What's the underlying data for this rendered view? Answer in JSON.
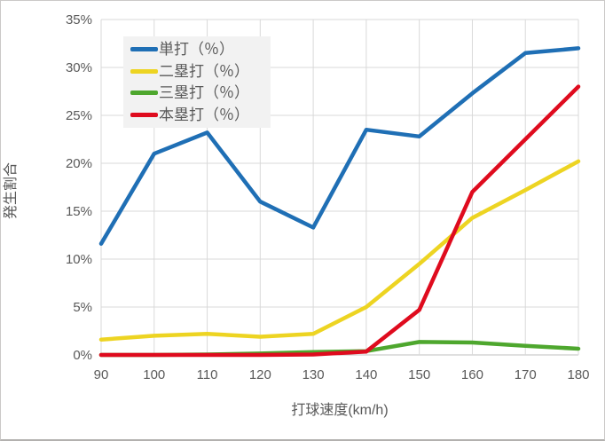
{
  "chart_data": {
    "type": "line",
    "title": "",
    "xlabel": "打球速度(km/h)",
    "ylabel": "発生割合",
    "x": [
      90,
      100,
      110,
      120,
      130,
      140,
      150,
      160,
      170,
      180
    ],
    "series": [
      {
        "name": "単打（％）",
        "color": "#1F6FB5",
        "values": [
          11.6,
          21.0,
          23.2,
          16.0,
          13.3,
          23.5,
          22.8,
          27.3,
          31.5,
          32.0
        ]
      },
      {
        "name": "二塁打（％）",
        "color": "#EDD422",
        "values": [
          1.6,
          2.0,
          2.2,
          1.9,
          2.2,
          5.0,
          9.5,
          14.3,
          17.2,
          20.2
        ]
      },
      {
        "name": "三塁打（％）",
        "color": "#4EA72E",
        "values": [
          0.0,
          0.0,
          0.05,
          0.15,
          0.3,
          0.4,
          1.35,
          1.3,
          0.95,
          0.65
        ]
      },
      {
        "name": "本塁打（％）",
        "color": "#DF0B1E",
        "values": [
          0.0,
          0.0,
          0.0,
          0.0,
          0.05,
          0.35,
          4.7,
          17.0,
          22.5,
          28.0
        ]
      }
    ],
    "ylim": [
      0,
      35
    ],
    "y_tick_step": 5,
    "y_ticks": [
      "0%",
      "5%",
      "10%",
      "15%",
      "20%",
      "25%",
      "30%",
      "35%"
    ],
    "grid": true,
    "legend_position": "inside-top-left",
    "colors": {
      "axis_text": "#595959",
      "gridline": "#D9D9D9",
      "axis_line": "#BFBFBF",
      "legend_bg": "#F2F2F2",
      "background": "#FFFFFF"
    }
  }
}
